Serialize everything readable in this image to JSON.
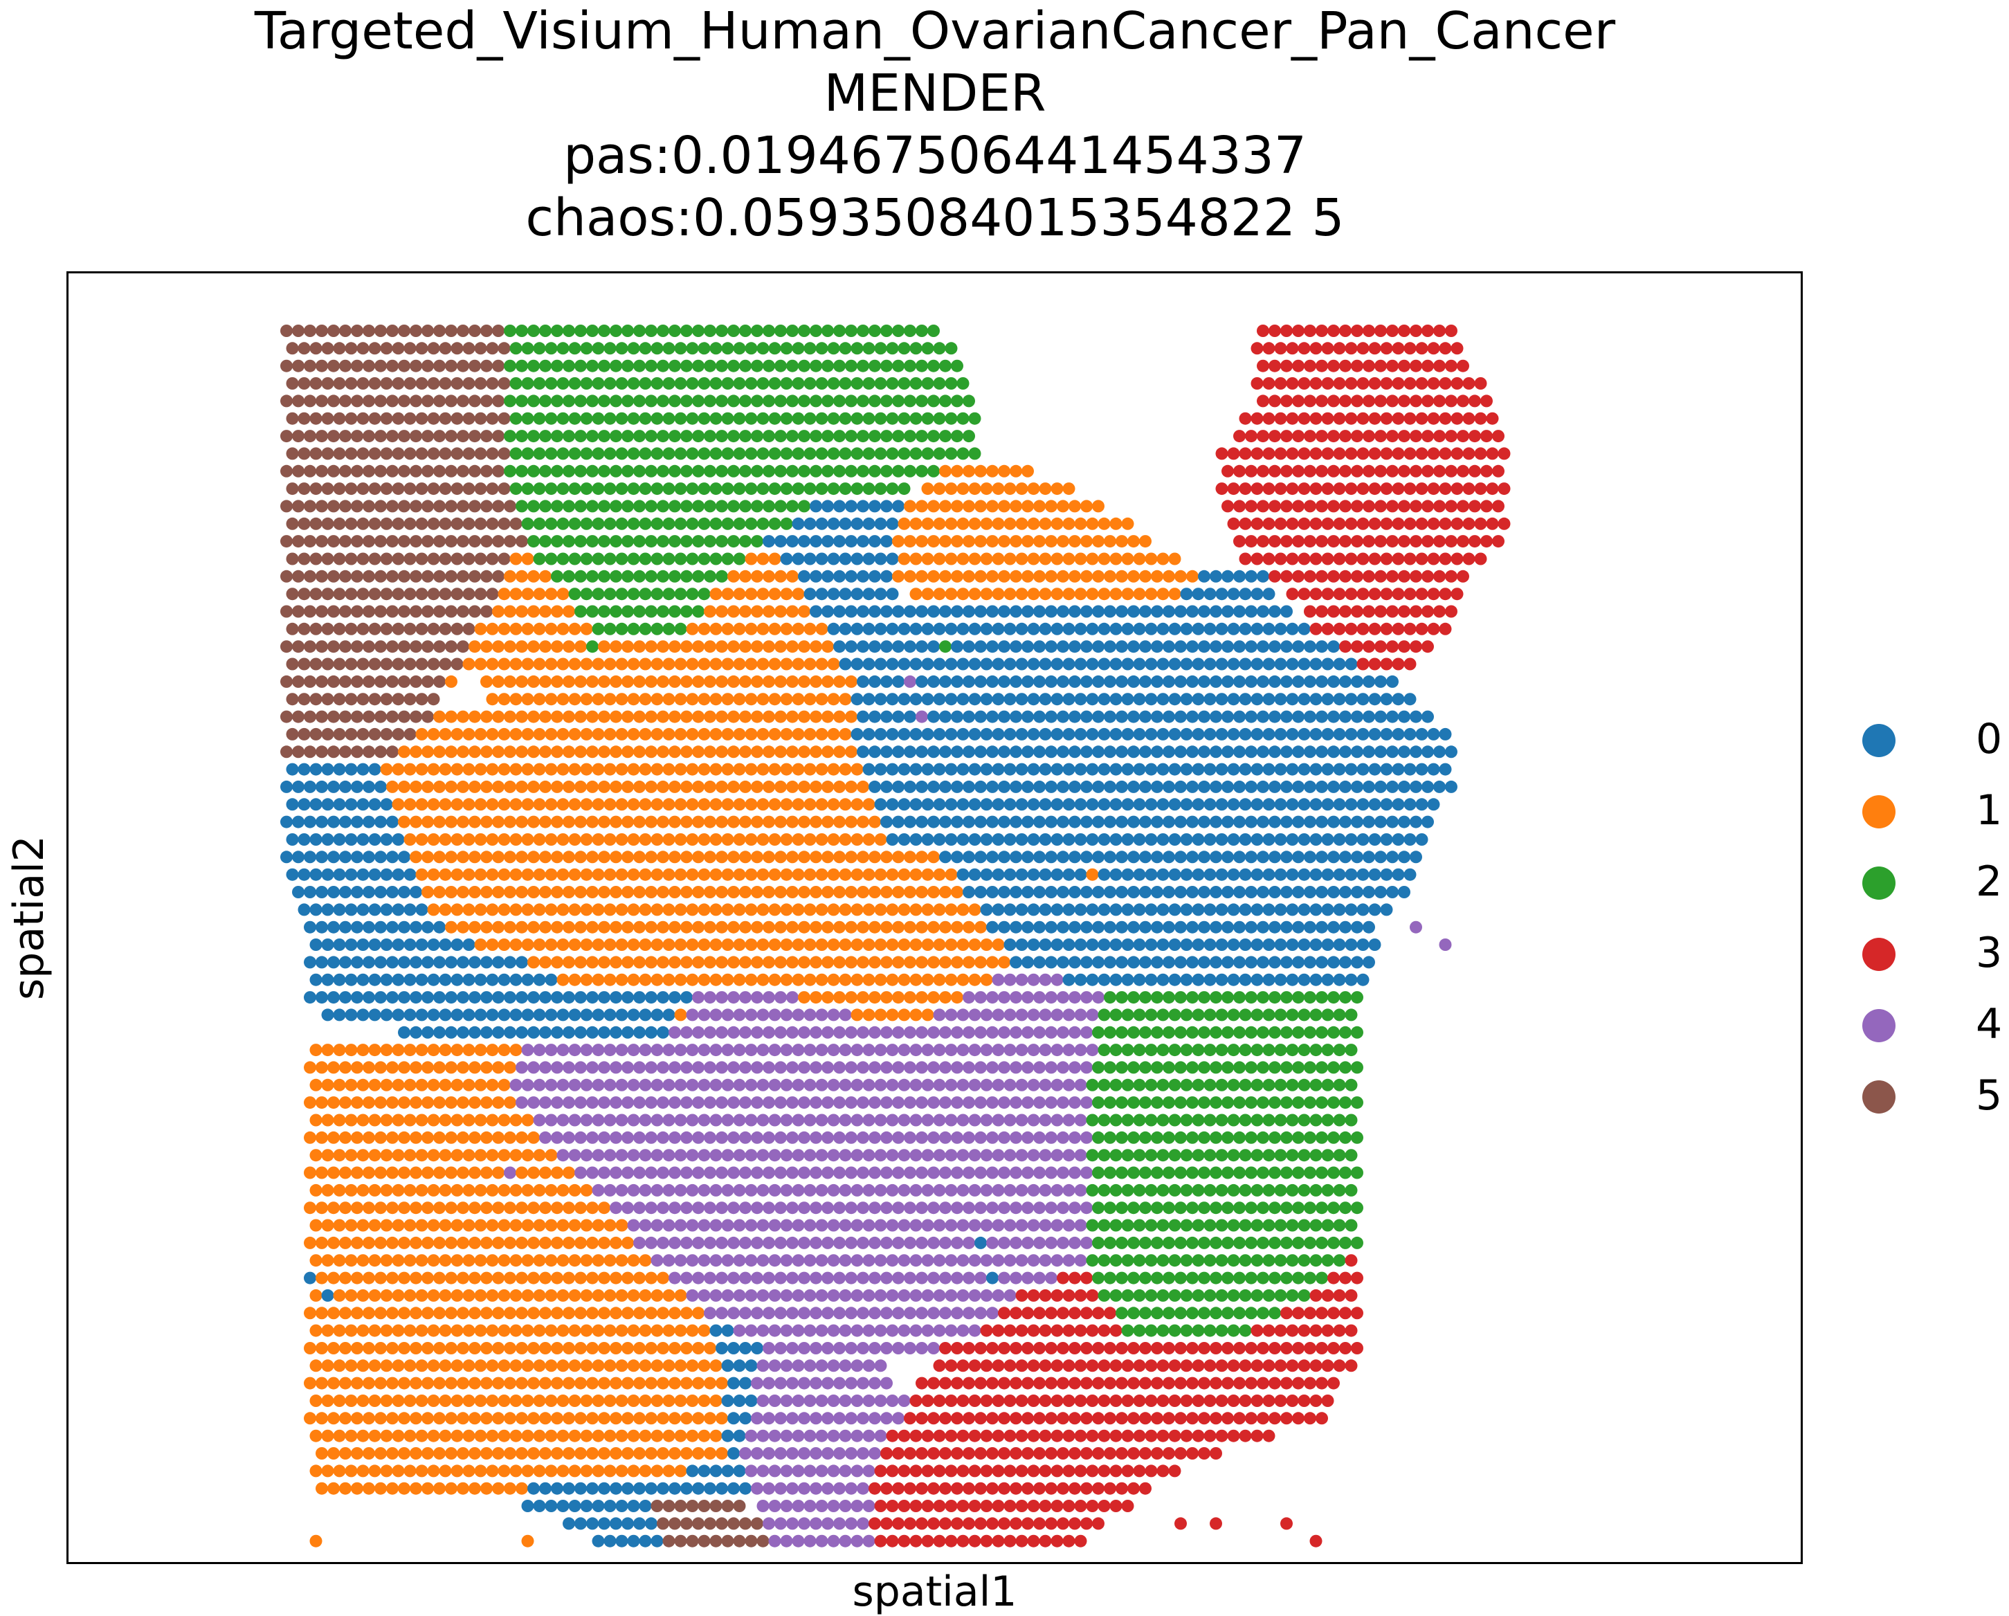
{
  "chart_data": {
    "type": "scatter",
    "title_lines": [
      "Targeted_Visium_Human_OvarianCancer_Pan_Cancer",
      "MENDER",
      "pas:0.019467506441454337",
      "chaos:0.05935084015354822 5"
    ],
    "xlabel": "spatial1",
    "ylabel": "spatial2",
    "ticks": "none",
    "grid": false,
    "legend_position": "right",
    "categories": [
      "0",
      "1",
      "2",
      "3",
      "4",
      "5"
    ],
    "colors": {
      "0": "#1f77b4",
      "1": "#ff7f0e",
      "2": "#2ca02c",
      "3": "#d62728",
      "4": "#9467bd",
      "5": "#8c564b"
    },
    "spot_grid": {
      "columns": 104,
      "rows": 78,
      "spot_spacing": 1.0,
      "row_spacing": 0.866,
      "odd_row_offset": 0.5
    },
    "regions": [
      {
        "cluster": "5",
        "polygon": [
          [
            0,
            0
          ],
          [
            12,
            0
          ],
          [
            12,
            8
          ],
          [
            13,
            12
          ],
          [
            11,
            16
          ],
          [
            9,
            20
          ],
          [
            8,
            22
          ],
          [
            5,
            25
          ],
          [
            0,
            25
          ]
        ]
      },
      {
        "cluster": "2",
        "polygon": [
          [
            12,
            0
          ],
          [
            36,
            0
          ],
          [
            38,
            4
          ],
          [
            38,
            7
          ],
          [
            36,
            8
          ],
          [
            33,
            10
          ],
          [
            29,
            10
          ],
          [
            26,
            12
          ],
          [
            24,
            14
          ],
          [
            23,
            16
          ],
          [
            21,
            18
          ],
          [
            18,
            18
          ],
          [
            16,
            16
          ],
          [
            13,
            12
          ],
          [
            12,
            8
          ]
        ]
      },
      {
        "cluster": "1",
        "polygon": [
          [
            36,
            8
          ],
          [
            41,
            8
          ],
          [
            45,
            10
          ],
          [
            50,
            14
          ],
          [
            48,
            16
          ],
          [
            40,
            16
          ],
          [
            36,
            16
          ],
          [
            33,
            14
          ],
          [
            34,
            10
          ]
        ]
      },
      {
        "cluster": "3",
        "polygon": [
          [
            53,
            0
          ],
          [
            64,
            0
          ],
          [
            66,
            4
          ],
          [
            68,
            8
          ],
          [
            68,
            10
          ],
          [
            65,
            14
          ],
          [
            64,
            17
          ],
          [
            61,
            20
          ],
          [
            60,
            20
          ],
          [
            58,
            18
          ],
          [
            56,
            17
          ],
          [
            55,
            15
          ],
          [
            52,
            13
          ],
          [
            51,
            10
          ],
          [
            51,
            7
          ],
          [
            53,
            4
          ]
        ]
      },
      {
        "cluster": "0",
        "polygon": [
          [
            26,
            12
          ],
          [
            29,
            10
          ],
          [
            33,
            10
          ],
          [
            34,
            10
          ],
          [
            33,
            14
          ],
          [
            34,
            16
          ],
          [
            40,
            16
          ],
          [
            48,
            16
          ],
          [
            50,
            14
          ],
          [
            53,
            13
          ],
          [
            56,
            17
          ],
          [
            58,
            18
          ],
          [
            60,
            20
          ],
          [
            61,
            20
          ],
          [
            64,
            23
          ],
          [
            64,
            26
          ],
          [
            63,
            28
          ],
          [
            62,
            31
          ],
          [
            60,
            34
          ],
          [
            59,
            38
          ],
          [
            54,
            38
          ],
          [
            45,
            38
          ],
          [
            40,
            36
          ],
          [
            38,
            33
          ],
          [
            36,
            30
          ],
          [
            33,
            29
          ],
          [
            32,
            26
          ],
          [
            31,
            23
          ],
          [
            31,
            20
          ],
          [
            30,
            18
          ],
          [
            29,
            16
          ],
          [
            28,
            14
          ]
        ]
      },
      {
        "cluster": "1",
        "polygon": [
          [
            24,
            14
          ],
          [
            26,
            12
          ],
          [
            28,
            14
          ],
          [
            29,
            16
          ],
          [
            30,
            18
          ],
          [
            31,
            20
          ],
          [
            31,
            23
          ],
          [
            32,
            26
          ],
          [
            33,
            29
          ],
          [
            29,
            30
          ],
          [
            27,
            31
          ],
          [
            24,
            33
          ],
          [
            21,
            34
          ],
          [
            15,
            34
          ],
          [
            13,
            33
          ],
          [
            12,
            30
          ],
          [
            13,
            27
          ],
          [
            12,
            24
          ],
          [
            11,
            22
          ],
          [
            10,
            19
          ],
          [
            8,
            22
          ],
          [
            9,
            20
          ],
          [
            11,
            16
          ],
          [
            13,
            12
          ],
          [
            16,
            16
          ],
          [
            18,
            18
          ],
          [
            21,
            18
          ],
          [
            23,
            16
          ]
        ]
      },
      {
        "cluster": "1",
        "polygon": [
          [
            8,
            22
          ],
          [
            11,
            22
          ],
          [
            12,
            24
          ],
          [
            13,
            27
          ],
          [
            12,
            30
          ],
          [
            13,
            33
          ],
          [
            15,
            34
          ],
          [
            21,
            34
          ],
          [
            24,
            33
          ],
          [
            27,
            31
          ],
          [
            29,
            30
          ],
          [
            33,
            29
          ],
          [
            36,
            30
          ],
          [
            38,
            33
          ],
          [
            40,
            36
          ],
          [
            37,
            38
          ],
          [
            34,
            40
          ],
          [
            31,
            39
          ],
          [
            28,
            38
          ],
          [
            26,
            38
          ],
          [
            22,
            38
          ],
          [
            18,
            38
          ],
          [
            15,
            37
          ],
          [
            13,
            36
          ],
          [
            10,
            35
          ],
          [
            9,
            35
          ],
          [
            8,
            33
          ],
          [
            7,
            30
          ],
          [
            6,
            28
          ],
          [
            5,
            25
          ]
        ]
      },
      {
        "cluster": "0",
        "polygon": [
          [
            0,
            25
          ],
          [
            5,
            25
          ],
          [
            6,
            28
          ],
          [
            7,
            30
          ],
          [
            8,
            33
          ],
          [
            9,
            35
          ],
          [
            10,
            35
          ],
          [
            13,
            36
          ],
          [
            15,
            37
          ],
          [
            18,
            38
          ],
          [
            22,
            38
          ],
          [
            21,
            40
          ],
          [
            17,
            41
          ],
          [
            13,
            41
          ],
          [
            9,
            41
          ],
          [
            6,
            40
          ],
          [
            3,
            40
          ],
          [
            1,
            38
          ],
          [
            1,
            34
          ],
          [
            0,
            30
          ]
        ]
      },
      {
        "cluster": "4",
        "polygon": [
          [
            22,
            38
          ],
          [
            26,
            38
          ],
          [
            28,
            38
          ],
          [
            31,
            39
          ],
          [
            34,
            40
          ],
          [
            37,
            38
          ],
          [
            40,
            36
          ],
          [
            45,
            38
          ],
          [
            44,
            42
          ],
          [
            44,
            46
          ],
          [
            44,
            50
          ],
          [
            44,
            53
          ],
          [
            40,
            55
          ],
          [
            38,
            57
          ],
          [
            36,
            58
          ],
          [
            33,
            59
          ],
          [
            30,
            59
          ],
          [
            26,
            58
          ],
          [
            23,
            56
          ],
          [
            20,
            53
          ],
          [
            18,
            50
          ],
          [
            14,
            46
          ],
          [
            12,
            43
          ],
          [
            13,
            41
          ],
          [
            17,
            41
          ],
          [
            21,
            40
          ]
        ]
      },
      {
        "cluster": "2",
        "polygon": [
          [
            45,
            38
          ],
          [
            54,
            38
          ],
          [
            59,
            38
          ],
          [
            59,
            43
          ],
          [
            59,
            48
          ],
          [
            59,
            52
          ],
          [
            56,
            55
          ],
          [
            53,
            57
          ],
          [
            49,
            58
          ],
          [
            46,
            58
          ],
          [
            44,
            53
          ],
          [
            44,
            50
          ],
          [
            44,
            46
          ],
          [
            44,
            42
          ]
        ]
      },
      {
        "cluster": "1",
        "polygon": [
          [
            1,
            41
          ],
          [
            6,
            40
          ],
          [
            9,
            41
          ],
          [
            13,
            41
          ],
          [
            12,
            43
          ],
          [
            14,
            46
          ],
          [
            18,
            50
          ],
          [
            20,
            53
          ],
          [
            23,
            56
          ],
          [
            24,
            60
          ],
          [
            24,
            64
          ],
          [
            20,
            66
          ],
          [
            15,
            67
          ],
          [
            10,
            67
          ],
          [
            5,
            67
          ],
          [
            2,
            67
          ],
          [
            1,
            62
          ],
          [
            1,
            56
          ],
          [
            1,
            50
          ],
          [
            1,
            45
          ]
        ]
      },
      {
        "cluster": "3",
        "polygon": [
          [
            44,
            53
          ],
          [
            46,
            58
          ],
          [
            49,
            58
          ],
          [
            53,
            57
          ],
          [
            56,
            55
          ],
          [
            59,
            52
          ],
          [
            59,
            58
          ],
          [
            57,
            62
          ],
          [
            54,
            63
          ],
          [
            49,
            65
          ],
          [
            45,
            68
          ],
          [
            42,
            71
          ],
          [
            39,
            73
          ],
          [
            38,
            75
          ],
          [
            34,
            75
          ],
          [
            32,
            71
          ],
          [
            32,
            66
          ],
          [
            34,
            61
          ],
          [
            36,
            58
          ],
          [
            38,
            57
          ],
          [
            40,
            55
          ]
        ]
      },
      {
        "cluster": "0",
        "polygon": [
          [
            23,
            56
          ],
          [
            26,
            58
          ],
          [
            30,
            59
          ],
          [
            33,
            59
          ],
          [
            34,
            61
          ],
          [
            32,
            66
          ],
          [
            25,
            67
          ],
          [
            22,
            68
          ],
          [
            20,
            66
          ],
          [
            24,
            64
          ],
          [
            24,
            60
          ]
        ]
      },
      {
        "cluster": "4",
        "polygon": [
          [
            26,
            58
          ],
          [
            30,
            59
          ],
          [
            33,
            59
          ],
          [
            34,
            61
          ],
          [
            32,
            66
          ],
          [
            32,
            71
          ],
          [
            34,
            75
          ],
          [
            30,
            75
          ],
          [
            27,
            73
          ],
          [
            26,
            68
          ],
          [
            25,
            64
          ]
        ]
      },
      {
        "cluster": "5",
        "polygon": [
          [
            20,
            66
          ],
          [
            25,
            67
          ],
          [
            26,
            68
          ],
          [
            27,
            73
          ],
          [
            24,
            73
          ],
          [
            22,
            72
          ],
          [
            21,
            70
          ]
        ]
      },
      {
        "cluster": "0",
        "polygon": [
          [
            13,
            65
          ],
          [
            20,
            66
          ],
          [
            21,
            70
          ],
          [
            18,
            70
          ],
          [
            15,
            68
          ],
          [
            13,
            67
          ]
        ]
      },
      {
        "cluster": "4",
        "polygon": [
          [
            32,
            66
          ],
          [
            32,
            71
          ],
          [
            34,
            75
          ],
          [
            30,
            75
          ],
          [
            27,
            73
          ],
          [
            27,
            68
          ]
        ]
      }
    ],
    "stray_spots": [
      {
        "cluster": "2",
        "col": 17,
        "row": 18
      },
      {
        "cluster": "2",
        "col": 36,
        "row": 18
      },
      {
        "cluster": "4",
        "col": 34,
        "row": 20
      },
      {
        "cluster": "4",
        "col": 35,
        "row": 22
      },
      {
        "cluster": "1",
        "col": 44,
        "row": 31
      },
      {
        "cluster": "4",
        "col": 62,
        "row": 34
      },
      {
        "cluster": "4",
        "col": 63,
        "row": 35
      },
      {
        "cluster": "1",
        "col": 21,
        "row": 39
      },
      {
        "cluster": "4",
        "col": 12,
        "row": 48
      },
      {
        "cluster": "0",
        "col": 1,
        "row": 54
      },
      {
        "cluster": "0",
        "col": 2,
        "row": 55
      },
      {
        "cluster": "0",
        "col": 38,
        "row": 52
      },
      {
        "cluster": "0",
        "col": 39,
        "row": 54
      },
      {
        "cluster": "1",
        "col": 1,
        "row": 69
      },
      {
        "cluster": "1",
        "col": 13,
        "row": 69
      },
      {
        "cluster": "3",
        "col": 49,
        "row": 68
      },
      {
        "cluster": "3",
        "col": 51,
        "row": 68
      },
      {
        "cluster": "3",
        "col": 55,
        "row": 68
      },
      {
        "cluster": "3",
        "col": 56,
        "row": 69
      },
      {
        "cluster": "3",
        "col": 38,
        "row": 77
      }
    ]
  },
  "legend": {
    "items": [
      {
        "label": "0",
        "color": "#1f77b4"
      },
      {
        "label": "1",
        "color": "#ff7f0e"
      },
      {
        "label": "2",
        "color": "#2ca02c"
      },
      {
        "label": "3",
        "color": "#d62728"
      },
      {
        "label": "4",
        "color": "#9467bd"
      },
      {
        "label": "5",
        "color": "#8c564b"
      }
    ]
  }
}
